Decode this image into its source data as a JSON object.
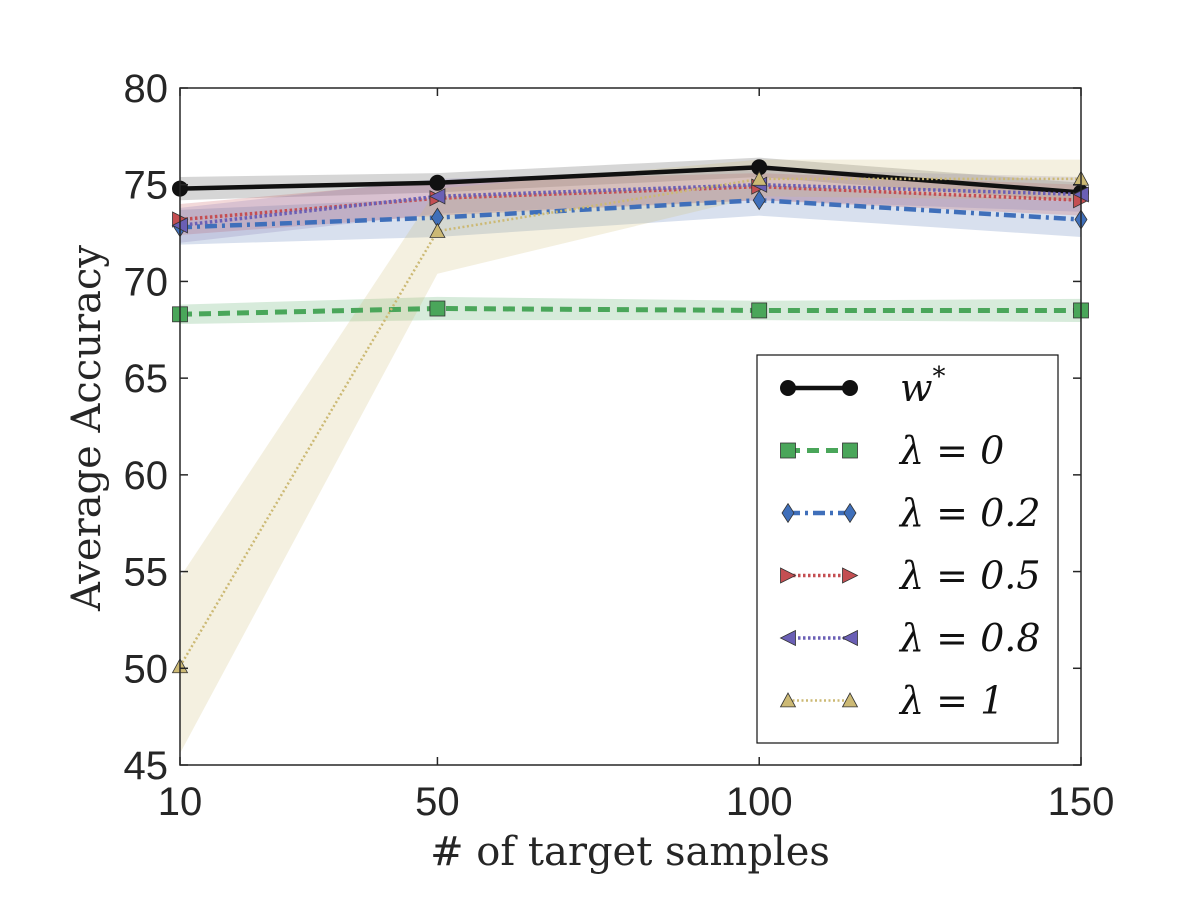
{
  "chart_data": {
    "type": "line",
    "xlabel": "# of target samples",
    "ylabel": "Average Accuracy",
    "x_ticks": [
      "10",
      "50",
      "100",
      "150"
    ],
    "y_ticks": [
      "45",
      "50",
      "55",
      "60",
      "65",
      "70",
      "75",
      "80"
    ],
    "xlim": [
      10,
      150
    ],
    "ylim": [
      45,
      80
    ],
    "grid": false,
    "legend_position": "lower-right",
    "series": [
      {
        "name": "w*",
        "legend_prefix": "w",
        "legend_sup": "*",
        "color": "#111111",
        "band_color": "#444444",
        "marker": "circle",
        "dash": "solid",
        "x": [
          10,
          50,
          100,
          150
        ],
        "y": [
          74.8,
          75.1,
          75.9,
          74.6
        ],
        "lower": [
          74.2,
          74.6,
          75.4,
          74.1
        ],
        "upper": [
          75.4,
          75.6,
          76.4,
          75.1
        ]
      },
      {
        "name": "λ = 0",
        "legend_prefix": "λ = 0",
        "legend_sup": "",
        "color": "#4aa65a",
        "band_color": "#4aa65a",
        "marker": "square",
        "dash": "dashed",
        "x": [
          10,
          50,
          100,
          150
        ],
        "y": [
          68.3,
          68.6,
          68.5,
          68.5
        ],
        "lower": [
          67.8,
          68.0,
          68.0,
          67.9
        ],
        "upper": [
          68.8,
          69.2,
          69.0,
          69.1
        ]
      },
      {
        "name": "λ = 0.2",
        "legend_prefix": "λ = 0.2",
        "legend_sup": "",
        "color": "#3f6fba",
        "band_color": "#4c72b0",
        "marker": "diamond",
        "dash": "dashdot",
        "x": [
          10,
          50,
          100,
          150
        ],
        "y": [
          72.8,
          73.3,
          74.2,
          73.2
        ],
        "lower": [
          71.9,
          72.3,
          73.4,
          72.3
        ],
        "upper": [
          73.7,
          74.3,
          75.0,
          74.1
        ]
      },
      {
        "name": "λ = 0.5",
        "legend_prefix": "λ = 0.5",
        "legend_sup": "",
        "color": "#c44e52",
        "band_color": "#c44e52",
        "marker": "triangle-right",
        "dash": "dotted",
        "x": [
          10,
          50,
          100,
          150
        ],
        "y": [
          73.2,
          74.3,
          74.9,
          74.2
        ],
        "lower": [
          72.4,
          73.4,
          74.2,
          73.4
        ],
        "upper": [
          74.0,
          75.2,
          75.6,
          75.0
        ]
      },
      {
        "name": "λ = 0.8",
        "legend_prefix": "λ = 0.8",
        "legend_sup": "",
        "color": "#6a5fb5",
        "band_color": "#8172b2",
        "marker": "triangle-left",
        "dash": "dotted",
        "x": [
          10,
          50,
          100,
          150
        ],
        "y": [
          72.9,
          74.4,
          75.0,
          74.5
        ],
        "lower": [
          72.0,
          73.5,
          74.2,
          73.6
        ],
        "upper": [
          73.8,
          75.3,
          75.8,
          75.4
        ]
      },
      {
        "name": "λ = 1",
        "legend_prefix": "λ = 1",
        "legend_sup": "",
        "color": "#ccb974",
        "band_color": "#ccb974",
        "marker": "triangle-up",
        "dash": "finedot",
        "x": [
          10,
          50,
          100,
          150
        ],
        "y": [
          50.1,
          72.6,
          75.3,
          75.3
        ],
        "lower": [
          45.6,
          70.4,
          74.4,
          74.2
        ],
        "upper": [
          54.7,
          74.8,
          76.3,
          76.3
        ]
      }
    ]
  }
}
